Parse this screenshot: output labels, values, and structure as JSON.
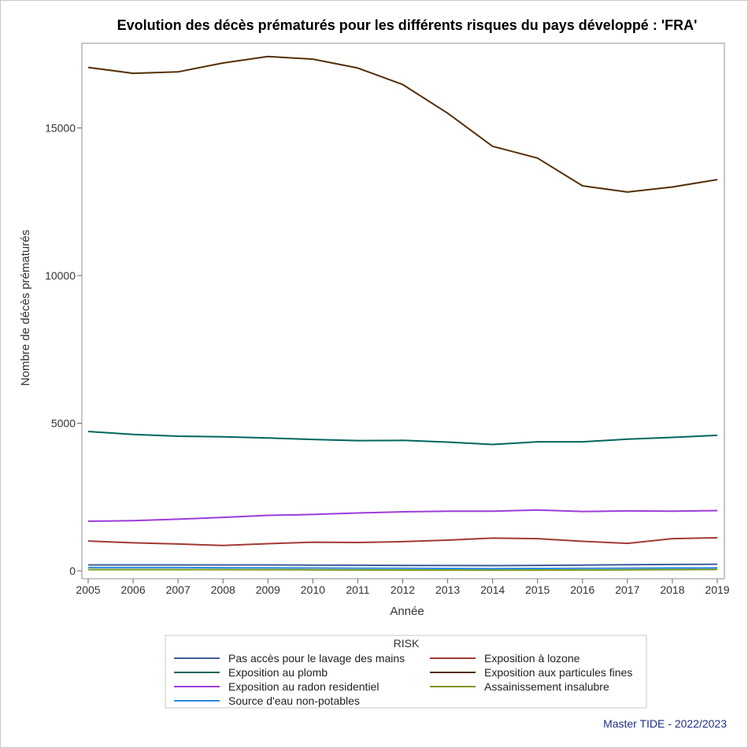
{
  "footnote": "Master TIDE - 2022/2023",
  "chart_data": {
    "type": "line",
    "title": "Evolution des décès prématurés pour les différents risques du pays développé : 'FRA'",
    "xlabel": "Année",
    "ylabel": "Nombre de décès prématurés",
    "x": [
      2005,
      2006,
      2007,
      2008,
      2009,
      2010,
      2011,
      2012,
      2013,
      2014,
      2015,
      2016,
      2017,
      2018,
      2019
    ],
    "xlim": [
      2005,
      2019
    ],
    "ylim": [
      0,
      17600
    ],
    "yticks": [
      0,
      5000,
      10000,
      15000
    ],
    "grid": false,
    "legend": {
      "title": "RISK",
      "position": "bottom"
    },
    "series": [
      {
        "name": "Pas accès pour le lavage des mains",
        "color": "#3f5d9a",
        "values": [
          200,
          200,
          200,
          200,
          200,
          195,
          190,
          185,
          180,
          175,
          185,
          195,
          205,
          215,
          225
        ]
      },
      {
        "name": "Exposition à lozone",
        "color": "#a23a32",
        "values": [
          1010,
          950,
          910,
          860,
          920,
          970,
          960,
          990,
          1040,
          1110,
          1090,
          1000,
          930,
          1090,
          1120
        ]
      },
      {
        "name": "Exposition au plomb",
        "color": "#01665e",
        "values": [
          4720,
          4620,
          4560,
          4540,
          4500,
          4450,
          4410,
          4420,
          4360,
          4280,
          4370,
          4370,
          4460,
          4520,
          4590
        ]
      },
      {
        "name": "Exposition aux particules fines",
        "color": "#543005",
        "values": [
          17050,
          16850,
          16900,
          17200,
          17420,
          17330,
          17030,
          16470,
          15500,
          14380,
          13980,
          13040,
          12830,
          13000,
          13250
        ]
      },
      {
        "name": "Exposition au radon residentiel",
        "color": "#9d3cdb",
        "values": [
          1680,
          1700,
          1750,
          1810,
          1880,
          1910,
          1960,
          2000,
          2020,
          2020,
          2060,
          2010,
          2030,
          2020,
          2040
        ]
      },
      {
        "name": "Assainissement insalubre",
        "color": "#7f9a1a",
        "values": [
          40,
          40,
          40,
          40,
          38,
          35,
          30,
          28,
          25,
          25,
          25,
          30,
          35,
          40,
          45
        ]
      },
      {
        "name": "Source d'eau non-potables",
        "color": "#2a8be0",
        "values": [
          110,
          110,
          110,
          105,
          100,
          95,
          90,
          85,
          80,
          75,
          80,
          85,
          90,
          95,
          100
        ]
      }
    ]
  }
}
